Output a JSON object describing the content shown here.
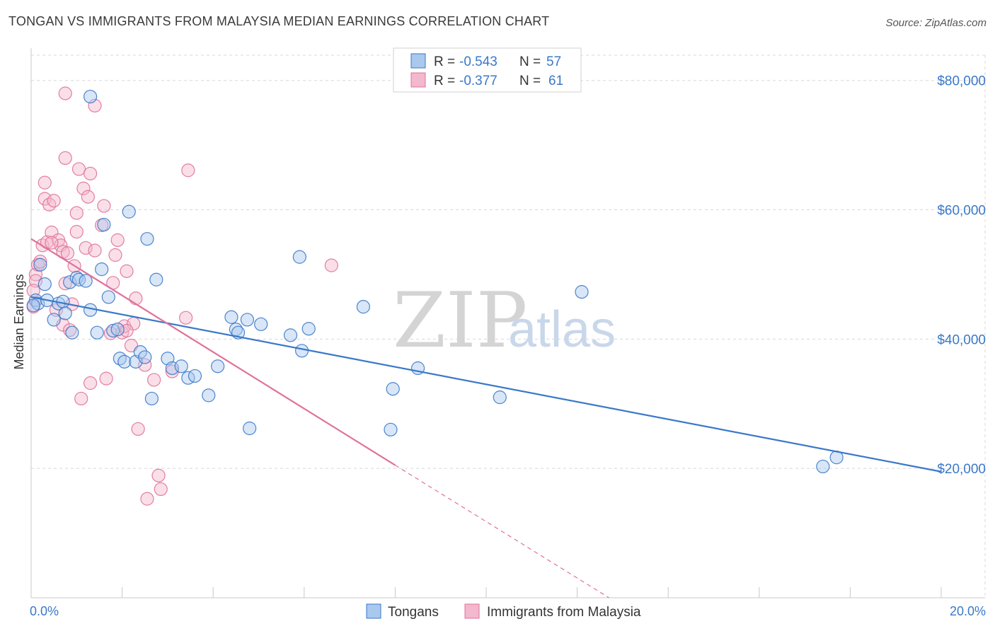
{
  "title": "TONGAN VS IMMIGRANTS FROM MALAYSIA MEDIAN EARNINGS CORRELATION CHART",
  "source": "Source: ZipAtlas.com",
  "colors": {
    "blue": "#3a78c9",
    "blue_fill": "#a9c8ee",
    "pink": "#e07199",
    "pink_fill": "#f3b8cd",
    "grid": "#d8d8d8"
  },
  "chart_data": {
    "type": "scatter",
    "title": "TONGAN VS IMMIGRANTS FROM MALAYSIA MEDIAN EARNINGS CORRELATION CHART",
    "xlabel": "",
    "ylabel": "Median Earnings",
    "xlim": [
      0,
      20
    ],
    "ylim": [
      0,
      85000
    ],
    "x_tick_labels": [
      "0.0%",
      "20.0%"
    ],
    "y_ticks": [
      20000,
      40000,
      60000,
      80000
    ],
    "y_tick_labels": [
      "$20,000",
      "$40,000",
      "$60,000",
      "$80,000"
    ],
    "watermark": {
      "zip": "ZIP",
      "atlas": "atlas"
    },
    "legend": [
      {
        "r_label": "R =",
        "r_value": "-0.543",
        "n_label": "N =",
        "n_value": "57"
      },
      {
        "r_label": "R =",
        "r_value": "-0.377",
        "n_label": "N =",
        "n_value": "61"
      }
    ],
    "series": [
      {
        "name": "Tongans",
        "color": "#3a78c9",
        "trend": {
          "x0": 0,
          "y0": 46500,
          "x1": 20,
          "y1": 19500
        },
        "points": [
          [
            0.1,
            46000
          ],
          [
            0.15,
            45500
          ],
          [
            0.2,
            51500
          ],
          [
            0.3,
            48500
          ],
          [
            0.35,
            46000
          ],
          [
            0.5,
            43000
          ],
          [
            0.6,
            45500
          ],
          [
            0.7,
            45800
          ],
          [
            0.75,
            44000
          ],
          [
            0.85,
            48800
          ],
          [
            0.9,
            41000
          ],
          [
            1.0,
            49500
          ],
          [
            1.05,
            49200
          ],
          [
            1.2,
            49000
          ],
          [
            1.3,
            44500
          ],
          [
            1.45,
            41000
          ],
          [
            1.55,
            50800
          ],
          [
            1.6,
            57700
          ],
          [
            1.7,
            46500
          ],
          [
            1.8,
            41300
          ],
          [
            1.9,
            41500
          ],
          [
            1.95,
            37000
          ],
          [
            2.05,
            36500
          ],
          [
            2.15,
            59700
          ],
          [
            2.3,
            36500
          ],
          [
            2.4,
            38000
          ],
          [
            2.5,
            37200
          ],
          [
            2.55,
            55500
          ],
          [
            2.65,
            30800
          ],
          [
            2.75,
            49200
          ],
          [
            3.0,
            37000
          ],
          [
            3.1,
            35500
          ],
          [
            3.3,
            35800
          ],
          [
            3.45,
            34000
          ],
          [
            3.6,
            34300
          ],
          [
            3.9,
            31300
          ],
          [
            4.1,
            35800
          ],
          [
            4.4,
            43400
          ],
          [
            4.5,
            41500
          ],
          [
            4.55,
            41000
          ],
          [
            4.75,
            43000
          ],
          [
            4.8,
            26200
          ],
          [
            5.05,
            42300
          ],
          [
            5.7,
            40600
          ],
          [
            5.9,
            52700
          ],
          [
            5.95,
            38200
          ],
          [
            6.1,
            41600
          ],
          [
            7.3,
            45000
          ],
          [
            7.9,
            26000
          ],
          [
            7.95,
            32300
          ],
          [
            8.5,
            35500
          ],
          [
            10.3,
            31000
          ],
          [
            12.1,
            47300
          ],
          [
            1.3,
            77500
          ],
          [
            17.4,
            20300
          ],
          [
            17.7,
            21700
          ],
          [
            0.05,
            45200
          ]
        ]
      },
      {
        "name": "Immigrants from Malaysia",
        "color": "#e07199",
        "trend": {
          "x0": 0,
          "y0": 55500,
          "x1": 8.0,
          "y1": 20500
        },
        "trend_dash": {
          "x0": 8.0,
          "y0": 20500,
          "x1": 12.7,
          "y1": 0
        },
        "points": [
          [
            0.05,
            45000
          ],
          [
            0.1,
            50000
          ],
          [
            0.1,
            49000
          ],
          [
            0.15,
            51500
          ],
          [
            0.2,
            52000
          ],
          [
            0.25,
            54500
          ],
          [
            0.3,
            61700
          ],
          [
            0.3,
            64200
          ],
          [
            0.35,
            55000
          ],
          [
            0.4,
            60800
          ],
          [
            0.45,
            56500
          ],
          [
            0.5,
            61400
          ],
          [
            0.55,
            44500
          ],
          [
            0.6,
            55300
          ],
          [
            0.65,
            54500
          ],
          [
            0.7,
            42200
          ],
          [
            0.7,
            53500
          ],
          [
            0.75,
            48600
          ],
          [
            0.75,
            68000
          ],
          [
            0.8,
            53300
          ],
          [
            0.85,
            41400
          ],
          [
            0.9,
            45400
          ],
          [
            0.95,
            51300
          ],
          [
            1.0,
            56600
          ],
          [
            1.0,
            59500
          ],
          [
            1.05,
            66300
          ],
          [
            1.1,
            30800
          ],
          [
            1.15,
            63300
          ],
          [
            1.2,
            54100
          ],
          [
            1.25,
            62000
          ],
          [
            1.3,
            65600
          ],
          [
            1.3,
            33200
          ],
          [
            1.4,
            53700
          ],
          [
            1.55,
            57600
          ],
          [
            1.6,
            60600
          ],
          [
            1.65,
            33900
          ],
          [
            1.75,
            40900
          ],
          [
            1.8,
            48700
          ],
          [
            1.85,
            53000
          ],
          [
            1.9,
            55300
          ],
          [
            2.0,
            41000
          ],
          [
            2.05,
            42000
          ],
          [
            2.1,
            50500
          ],
          [
            2.2,
            39000
          ],
          [
            2.25,
            42400
          ],
          [
            2.3,
            46300
          ],
          [
            2.35,
            26100
          ],
          [
            2.5,
            36000
          ],
          [
            2.55,
            15300
          ],
          [
            2.7,
            33700
          ],
          [
            2.8,
            18900
          ],
          [
            2.85,
            16800
          ],
          [
            3.1,
            35000
          ],
          [
            3.4,
            43300
          ],
          [
            3.45,
            66100
          ],
          [
            0.75,
            78000
          ],
          [
            1.4,
            76100
          ],
          [
            6.6,
            51400
          ],
          [
            0.45,
            54900
          ],
          [
            0.05,
            47500
          ],
          [
            2.1,
            41300
          ]
        ]
      }
    ]
  },
  "bottom_legend": [
    "Tongans",
    "Immigrants from Malaysia"
  ]
}
